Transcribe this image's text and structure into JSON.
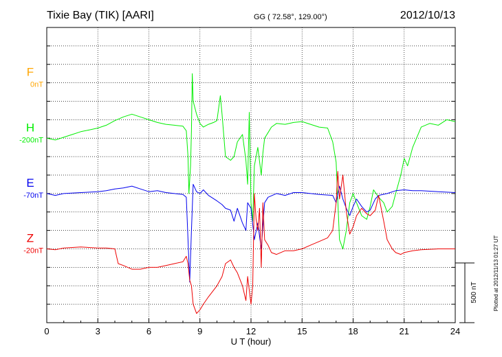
{
  "header": {
    "station": "Tixie Bay (TIK)  [AARI]",
    "coordinates": "GG ( 72.58°, 129.00°)",
    "date": "2012/10/13"
  },
  "footer": {
    "plotted_note": "Plotted at 2012/11/13 01:27 UT",
    "scale_label": "500 nT"
  },
  "chart_data": {
    "type": "line",
    "xlabel": "U T (hour)",
    "xlim": [
      0,
      24
    ],
    "xticks": [
      0,
      3,
      6,
      9,
      12,
      15,
      18,
      21,
      24
    ],
    "xtick_labels": [
      "0",
      "3",
      "6",
      "9",
      "12",
      "15",
      "18",
      "21",
      "24"
    ],
    "ylabel": "",
    "grid": true,
    "y_units": "nT",
    "y_range_nT": [
      -1100,
      500
    ],
    "series": [
      {
        "name": "F",
        "baseline_label": "0nT",
        "color": "#ffa500",
        "baseline_nT": 200,
        "points": []
      },
      {
        "name": "H",
        "baseline_label": "-200nT",
        "color": "#00ee00",
        "baseline_nT": -100,
        "points": [
          [
            0,
            -100
          ],
          [
            0.5,
            -110
          ],
          [
            1,
            -95
          ],
          [
            1.5,
            -80
          ],
          [
            2,
            -65
          ],
          [
            2.5,
            -55
          ],
          [
            3,
            -45
          ],
          [
            3.5,
            -30
          ],
          [
            4,
            -5
          ],
          [
            4.5,
            15
          ],
          [
            5,
            30
          ],
          [
            5.5,
            15
          ],
          [
            6,
            0
          ],
          [
            6.5,
            -15
          ],
          [
            7,
            -25
          ],
          [
            7.5,
            -30
          ],
          [
            8,
            -35
          ],
          [
            8.2,
            -60
          ],
          [
            8.3,
            -200
          ],
          [
            8.35,
            -400
          ],
          [
            8.45,
            -250
          ],
          [
            8.5,
            -60
          ],
          [
            8.55,
            250
          ],
          [
            8.6,
            100
          ],
          [
            8.8,
            30
          ],
          [
            9,
            -20
          ],
          [
            9.2,
            -40
          ],
          [
            9.5,
            -25
          ],
          [
            9.8,
            -15
          ],
          [
            10,
            -5
          ],
          [
            10.2,
            130
          ],
          [
            10.3,
            30
          ],
          [
            10.5,
            -200
          ],
          [
            10.8,
            -220
          ],
          [
            11,
            -200
          ],
          [
            11.2,
            -120
          ],
          [
            11.5,
            -80
          ],
          [
            11.7,
            -220
          ],
          [
            11.8,
            -350
          ],
          [
            11.9,
            40
          ],
          [
            12,
            -450
          ],
          [
            12.1,
            -550
          ],
          [
            12.2,
            -250
          ],
          [
            12.4,
            -150
          ],
          [
            12.6,
            -300
          ],
          [
            12.7,
            -180
          ],
          [
            12.8,
            -100
          ],
          [
            13,
            -70
          ],
          [
            13.2,
            -40
          ],
          [
            13.5,
            -20
          ],
          [
            14,
            -25
          ],
          [
            14.5,
            -15
          ],
          [
            15,
            -10
          ],
          [
            15.5,
            -25
          ],
          [
            16,
            -40
          ],
          [
            16.5,
            -45
          ],
          [
            16.8,
            -120
          ],
          [
            17,
            -230
          ],
          [
            17.2,
            -650
          ],
          [
            17.4,
            -700
          ],
          [
            17.6,
            -600
          ],
          [
            17.8,
            -450
          ],
          [
            18,
            -400
          ],
          [
            18.2,
            -450
          ],
          [
            18.5,
            -520
          ],
          [
            18.8,
            -540
          ],
          [
            19,
            -470
          ],
          [
            19.2,
            -380
          ],
          [
            19.5,
            -420
          ],
          [
            19.8,
            -450
          ],
          [
            20,
            -500
          ],
          [
            20.3,
            -470
          ],
          [
            20.5,
            -400
          ],
          [
            20.8,
            -300
          ],
          [
            21,
            -210
          ],
          [
            21.2,
            -250
          ],
          [
            21.5,
            -150
          ],
          [
            22,
            -40
          ],
          [
            22.5,
            -20
          ],
          [
            23,
            -30
          ],
          [
            23.5,
            0
          ],
          [
            24,
            -10
          ]
        ]
      },
      {
        "name": "E",
        "baseline_label": "-70nT",
        "color": "#0000ee",
        "baseline_nT": -400,
        "points": [
          [
            0,
            -400
          ],
          [
            0.5,
            -410
          ],
          [
            1,
            -400
          ],
          [
            2,
            -395
          ],
          [
            3,
            -390
          ],
          [
            3.5,
            -385
          ],
          [
            4,
            -375
          ],
          [
            4.5,
            -370
          ],
          [
            5,
            -360
          ],
          [
            5.5,
            -375
          ],
          [
            6,
            -390
          ],
          [
            6.5,
            -385
          ],
          [
            7,
            -395
          ],
          [
            7.5,
            -400
          ],
          [
            8,
            -405
          ],
          [
            8.2,
            -420
          ],
          [
            8.3,
            -650
          ],
          [
            8.4,
            -880
          ],
          [
            8.5,
            -600
          ],
          [
            8.6,
            -350
          ],
          [
            8.8,
            -390
          ],
          [
            9,
            -400
          ],
          [
            9.2,
            -380
          ],
          [
            9.5,
            -410
          ],
          [
            10,
            -440
          ],
          [
            10.3,
            -460
          ],
          [
            10.5,
            -480
          ],
          [
            10.8,
            -490
          ],
          [
            11,
            -550
          ],
          [
            11.2,
            -480
          ],
          [
            11.5,
            -560
          ],
          [
            11.7,
            -600
          ],
          [
            11.8,
            -450
          ],
          [
            12,
            -480
          ],
          [
            12.2,
            -650
          ],
          [
            12.4,
            -560
          ],
          [
            12.6,
            -700
          ],
          [
            12.8,
            -450
          ],
          [
            13,
            -420
          ],
          [
            13.5,
            -400
          ],
          [
            14,
            -410
          ],
          [
            14.5,
            -395
          ],
          [
            15,
            -395
          ],
          [
            16,
            -405
          ],
          [
            16.8,
            -410
          ],
          [
            17,
            -450
          ],
          [
            17.2,
            -360
          ],
          [
            17.4,
            -430
          ],
          [
            17.6,
            -480
          ],
          [
            17.8,
            -520
          ],
          [
            18,
            -470
          ],
          [
            18.2,
            -430
          ],
          [
            18.5,
            -470
          ],
          [
            18.8,
            -500
          ],
          [
            19,
            -490
          ],
          [
            19.3,
            -430
          ],
          [
            19.5,
            -410
          ],
          [
            20,
            -400
          ],
          [
            20.5,
            -385
          ],
          [
            21,
            -380
          ],
          [
            21.5,
            -385
          ],
          [
            22,
            -385
          ],
          [
            23,
            -390
          ],
          [
            24,
            -395
          ]
        ]
      },
      {
        "name": "Z",
        "baseline_label": "-20nT",
        "color": "#ee0000",
        "baseline_nT": -700,
        "points": [
          [
            0,
            -700
          ],
          [
            0.5,
            -705
          ],
          [
            1,
            -695
          ],
          [
            2,
            -690
          ],
          [
            3,
            -695
          ],
          [
            3.5,
            -695
          ],
          [
            4,
            -700
          ],
          [
            4.2,
            -780
          ],
          [
            4.5,
            -790
          ],
          [
            5,
            -810
          ],
          [
            5.5,
            -810
          ],
          [
            6,
            -800
          ],
          [
            6.5,
            -800
          ],
          [
            7,
            -790
          ],
          [
            7.5,
            -780
          ],
          [
            8,
            -770
          ],
          [
            8.2,
            -740
          ],
          [
            8.3,
            -780
          ],
          [
            8.4,
            -870
          ],
          [
            8.5,
            -900
          ],
          [
            8.6,
            -1000
          ],
          [
            8.8,
            -1050
          ],
          [
            9,
            -1030
          ],
          [
            9.2,
            -1000
          ],
          [
            9.5,
            -960
          ],
          [
            10,
            -900
          ],
          [
            10.3,
            -850
          ],
          [
            10.5,
            -780
          ],
          [
            10.8,
            -760
          ],
          [
            11,
            -800
          ],
          [
            11.2,
            -830
          ],
          [
            11.5,
            -900
          ],
          [
            11.7,
            -980
          ],
          [
            11.8,
            -850
          ],
          [
            12,
            -1000
          ],
          [
            12.1,
            -900
          ],
          [
            12.2,
            -400
          ],
          [
            12.3,
            -540
          ],
          [
            12.4,
            -600
          ],
          [
            12.5,
            -480
          ],
          [
            12.6,
            -800
          ],
          [
            12.7,
            -450
          ],
          [
            12.8,
            -650
          ],
          [
            13,
            -680
          ],
          [
            13.2,
            -720
          ],
          [
            13.5,
            -730
          ],
          [
            14,
            -710
          ],
          [
            14.5,
            -710
          ],
          [
            15,
            -700
          ],
          [
            15.5,
            -680
          ],
          [
            16,
            -660
          ],
          [
            16.5,
            -640
          ],
          [
            16.8,
            -600
          ],
          [
            17,
            -450
          ],
          [
            17.1,
            -280
          ],
          [
            17.2,
            -430
          ],
          [
            17.4,
            -300
          ],
          [
            17.6,
            -500
          ],
          [
            17.8,
            -620
          ],
          [
            18,
            -580
          ],
          [
            18.2,
            -520
          ],
          [
            18.5,
            -480
          ],
          [
            18.8,
            -510
          ],
          [
            19,
            -520
          ],
          [
            19.3,
            -490
          ],
          [
            19.5,
            -410
          ],
          [
            19.8,
            -550
          ],
          [
            20,
            -650
          ],
          [
            20.3,
            -700
          ],
          [
            20.5,
            -720
          ],
          [
            20.8,
            -730
          ],
          [
            21,
            -720
          ],
          [
            21.5,
            -710
          ],
          [
            22,
            -705
          ],
          [
            23,
            -700
          ],
          [
            24,
            -700
          ]
        ]
      }
    ]
  }
}
